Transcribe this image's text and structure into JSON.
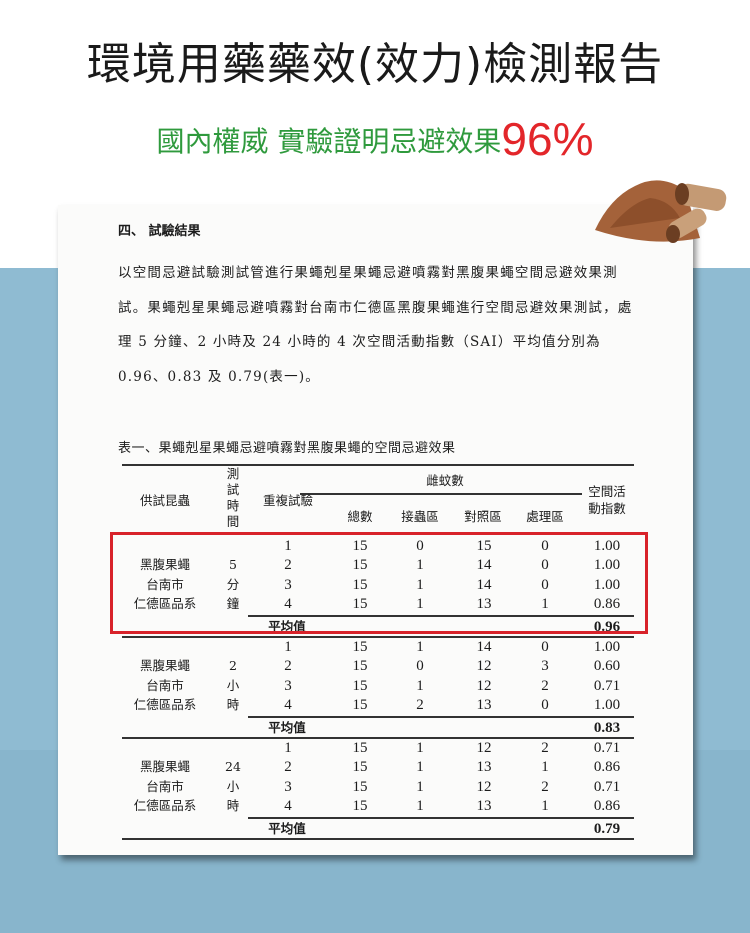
{
  "header": {
    "title": "環境用藥藥效(效力)檢測報告",
    "subtitle": "國內權威 實驗證明忌避效果",
    "highlight": "96%"
  },
  "colors": {
    "subtitle": "#2f9a3d",
    "highlight": "#e3262a",
    "background": "#8fbbd2",
    "box": "#d8222a"
  },
  "document": {
    "section": "四、 試驗結果",
    "paragraph": "以空間忌避試驗測試管進行果蠅剋星果蠅忌避噴霧對黑腹果蠅空間忌避效果測試。果蠅剋星果蠅忌避噴霧對台南市仁德區黑腹果蠅進行空間忌避效果測試，處理 5 分鐘、2 小時及 24 小時的 4 次空間活動指數（SAI）平均值分別為 0.96、0.83 及 0.79(表一)。",
    "table_caption": "表一、果蠅剋星果蠅忌避噴霧對黑腹果蠅的空間忌避效果",
    "table": {
      "headers": {
        "insect": "供試昆蟲",
        "time": "測試時間",
        "rep": "重複試驗",
        "female": "雌蚊數",
        "total": "總數",
        "release": "接蟲區",
        "control": "對照區",
        "treat": "處理區",
        "sai": "空間活動指數"
      },
      "avg_label": "平均值",
      "groups": [
        {
          "insect": [
            "黑腹果蠅",
            "台南市",
            "仁德區品系"
          ],
          "time": [
            "5",
            "分",
            "鐘"
          ],
          "rows": [
            [
              "1",
              "15",
              "0",
              "15",
              "0",
              "1.00"
            ],
            [
              "2",
              "15",
              "1",
              "14",
              "0",
              "1.00"
            ],
            [
              "3",
              "15",
              "1",
              "14",
              "0",
              "1.00"
            ],
            [
              "4",
              "15",
              "1",
              "13",
              "1",
              "0.86"
            ]
          ],
          "avg": "0.96"
        },
        {
          "insect": [
            "黑腹果蠅",
            "台南市",
            "仁德區品系"
          ],
          "time": [
            "2",
            "小",
            "時"
          ],
          "rows": [
            [
              "1",
              "15",
              "1",
              "14",
              "0",
              "1.00"
            ],
            [
              "2",
              "15",
              "0",
              "12",
              "3",
              "0.60"
            ],
            [
              "3",
              "15",
              "1",
              "12",
              "2",
              "0.71"
            ],
            [
              "4",
              "15",
              "2",
              "13",
              "0",
              "1.00"
            ]
          ],
          "avg": "0.83"
        },
        {
          "insect": [
            "黑腹果蠅",
            "台南市",
            "仁德區品系"
          ],
          "time": [
            "24",
            "小",
            "時"
          ],
          "rows": [
            [
              "1",
              "15",
              "1",
              "12",
              "2",
              "0.71"
            ],
            [
              "2",
              "15",
              "1",
              "13",
              "1",
              "0.86"
            ],
            [
              "3",
              "15",
              "1",
              "12",
              "2",
              "0.71"
            ],
            [
              "4",
              "15",
              "1",
              "13",
              "1",
              "0.86"
            ]
          ],
          "avg": "0.79"
        }
      ]
    }
  }
}
